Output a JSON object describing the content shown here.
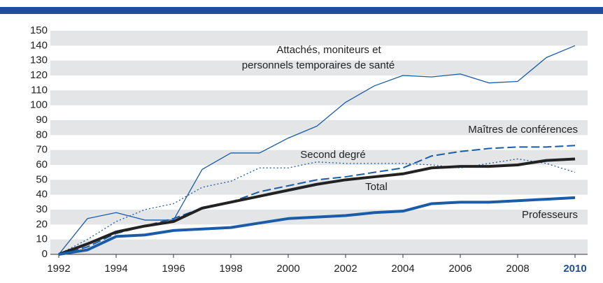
{
  "chart_data": {
    "type": "line",
    "x": [
      1992,
      1993,
      1994,
      1995,
      1996,
      1997,
      1998,
      1999,
      2000,
      2001,
      2002,
      2003,
      2004,
      2005,
      2006,
      2007,
      2008,
      2009,
      2010
    ],
    "xlim": [
      1992,
      2010
    ],
    "xticks": [
      1992,
      1994,
      1996,
      1998,
      2000,
      2002,
      2004,
      2006,
      2008,
      2010
    ],
    "ylim": [
      0,
      150
    ],
    "yticks": [
      0,
      10,
      20,
      30,
      40,
      50,
      60,
      70,
      80,
      90,
      100,
      110,
      120,
      130,
      140,
      150
    ],
    "grid": true,
    "series": [
      {
        "name": "Attachés, moniteurs et personnels temporaires de santé",
        "color": "#1a5ca8",
        "style": "solid",
        "width": 1.3,
        "values": [
          0,
          24,
          28,
          23,
          23,
          57,
          68,
          68,
          78,
          86,
          102,
          113,
          120,
          119,
          121,
          115,
          116,
          132,
          140
        ]
      },
      {
        "name": "Maîtres de conférences",
        "color": "#1a5ca8",
        "style": "dashed",
        "width": 2,
        "values": [
          0,
          5,
          14,
          19,
          24,
          31,
          35,
          42,
          46,
          50,
          52,
          55,
          58,
          66,
          69,
          71,
          72,
          72,
          73
        ]
      },
      {
        "name": "Second degré",
        "color": "#1a5ca8",
        "style": "dotted",
        "width": 1.3,
        "values": [
          0,
          10,
          22,
          30,
          34,
          45,
          49,
          58,
          58,
          62,
          61,
          61,
          61,
          60,
          58,
          61,
          64,
          61,
          55
        ]
      },
      {
        "name": "Total",
        "color": "#222222",
        "style": "solid",
        "width": 4,
        "values": [
          0,
          7,
          15,
          19,
          22,
          31,
          35,
          39,
          43,
          47,
          50,
          52,
          54,
          58,
          59,
          59,
          60,
          63,
          64
        ]
      },
      {
        "name": "Professeurs",
        "color": "#1a5ca8",
        "style": "solid",
        "width": 4,
        "values": [
          0,
          3,
          12,
          13,
          16,
          17,
          18,
          21,
          24,
          25,
          26,
          28,
          29,
          34,
          35,
          35,
          36,
          37,
          38
        ]
      }
    ],
    "annotations": [
      "Attachés, moniteurs et",
      "personnels temporaires de santé",
      "Maîtres de conférences",
      "Second degré",
      "Total",
      "Professeurs"
    ]
  }
}
